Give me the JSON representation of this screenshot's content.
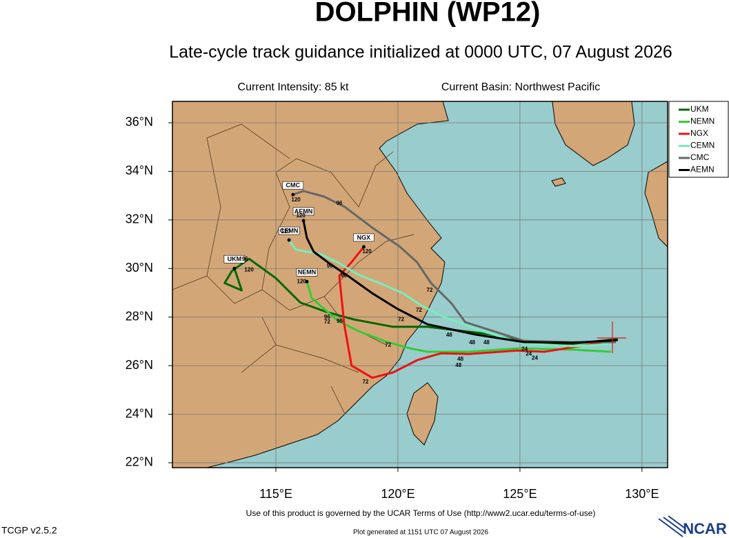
{
  "chart_data": {
    "type": "track",
    "title": "DOLPHIN (WP12)",
    "subtitle": "Late-cycle track guidance initialized at 0000 UTC, 07 August 2026",
    "intensity": "Current Intensity: 85 kt",
    "basin": "Current Basin: Northwest Pacific",
    "xlim": [
      110.76,
      131.05
    ],
    "ylim": [
      21.8,
      36.88
    ],
    "xticks": [
      {
        "value": 115,
        "label": "115°E"
      },
      {
        "value": 120,
        "label": "120°E"
      },
      {
        "value": 125,
        "label": "125°E"
      },
      {
        "value": 130,
        "label": "130°E"
      }
    ],
    "yticks": [
      {
        "value": 22,
        "label": "22°N"
      },
      {
        "value": 24,
        "label": "24°N"
      },
      {
        "value": 26,
        "label": "26°N"
      },
      {
        "value": 28,
        "label": "28°N"
      },
      {
        "value": 30,
        "label": "30°N"
      },
      {
        "value": 32,
        "label": "32°N"
      },
      {
        "value": 34,
        "label": "34°N"
      },
      {
        "value": 36,
        "label": "36°N"
      }
    ],
    "grid": true,
    "legend": "top-right",
    "series": [
      {
        "name": "UKM",
        "color": "#006600",
        "x": [
          129.0,
          127.2,
          125.6,
          123.7,
          121.2,
          119.8,
          118.2,
          117.1,
          116.0,
          115.0,
          113.9,
          113.2,
          112.9,
          113.6,
          113.3
        ],
        "y": [
          27.1,
          26.9,
          26.9,
          27.3,
          27.6,
          27.6,
          27.9,
          28.2,
          28.6,
          29.6,
          30.4,
          29.9,
          29.4,
          29.1,
          30.0
        ]
      },
      {
        "name": "NEMN",
        "color": "#33cc33",
        "x": [
          128.73,
          127.14,
          124.88,
          122.9,
          121.21,
          120.5,
          119.5,
          118.39,
          117.54,
          116.47,
          116.27
        ],
        "y": [
          26.57,
          26.66,
          26.71,
          26.57,
          26.57,
          26.71,
          26.99,
          27.42,
          27.85,
          28.78,
          29.46
        ]
      },
      {
        "name": "NGX",
        "color": "#ee1111",
        "x": [
          128.6,
          126.86,
          126.0,
          124.88,
          122.9,
          121.77,
          120.8,
          119.8,
          118.95,
          118.1,
          117.8,
          117.6,
          118.1,
          118.6
        ],
        "y": [
          27.0,
          26.71,
          26.57,
          26.62,
          26.48,
          26.51,
          26.23,
          25.72,
          25.5,
          26.0,
          27.7,
          29.7,
          30.26,
          30.89
        ]
      },
      {
        "name": "CEMN",
        "color": "#77eebb",
        "x": [
          128.73,
          127.14,
          125.16,
          123.46,
          121.77,
          120.92,
          120.21,
          119.22,
          118.37,
          117.52,
          116.81,
          115.82,
          115.54
        ],
        "y": [
          26.88,
          26.8,
          26.91,
          27.42,
          28.05,
          28.5,
          28.98,
          29.41,
          29.75,
          30.26,
          30.6,
          30.77,
          31.17
        ]
      },
      {
        "name": "CMC",
        "color": "#666666",
        "x": [
          128.93,
          127.14,
          125.16,
          122.76,
          122.2,
          121.35,
          120.78,
          120.08,
          118.95,
          117.83,
          116.97,
          116.13,
          115.7
        ],
        "y": [
          26.97,
          26.97,
          27.02,
          27.79,
          28.56,
          29.41,
          30.26,
          30.9,
          31.68,
          32.53,
          32.96,
          33.19,
          33.04
        ]
      },
      {
        "name": "AEMN",
        "color": "#000000",
        "x": [
          129.01,
          127.14,
          125.16,
          123.18,
          121.21,
          119.94,
          118.95,
          117.96,
          117.12,
          116.55,
          116.27,
          116.13
        ],
        "y": [
          27.05,
          26.94,
          26.97,
          27.28,
          27.7,
          28.36,
          28.98,
          29.69,
          30.26,
          30.69,
          31.26,
          31.97
        ]
      }
    ],
    "hour_labels": [
      {
        "text": "96",
        "lon": 113.73,
        "lat": 30.38
      },
      {
        "text": "120",
        "lon": 113.9,
        "lat": 29.94
      },
      {
        "text": "120",
        "lon": 115.82,
        "lat": 32.82
      },
      {
        "text": "96",
        "lon": 117.6,
        "lat": 32.68
      },
      {
        "text": "120",
        "lon": 116.02,
        "lat": 32.17
      },
      {
        "text": "120",
        "lon": 115.4,
        "lat": 31.51
      },
      {
        "text": "96",
        "lon": 117.21,
        "lat": 30.1
      },
      {
        "text": "96",
        "lon": 117.78,
        "lat": 29.7
      },
      {
        "text": "120",
        "lon": 118.73,
        "lat": 30.69
      },
      {
        "text": "120",
        "lon": 116.05,
        "lat": 29.46
      },
      {
        "text": "72",
        "lon": 121.3,
        "lat": 29.1
      },
      {
        "text": "72",
        "lon": 120.86,
        "lat": 28.28
      },
      {
        "text": "72",
        "lon": 120.13,
        "lat": 27.9
      },
      {
        "text": "96",
        "lon": 117.1,
        "lat": 28.0
      },
      {
        "text": "72",
        "lon": 117.1,
        "lat": 27.8
      },
      {
        "text": "96",
        "lon": 117.61,
        "lat": 27.82
      },
      {
        "text": "72",
        "lon": 119.6,
        "lat": 26.85
      },
      {
        "text": "48",
        "lon": 122.1,
        "lat": 27.25
      },
      {
        "text": "48",
        "lon": 123.04,
        "lat": 26.94
      },
      {
        "text": "48",
        "lon": 123.63,
        "lat": 26.94
      },
      {
        "text": "48",
        "lon": 122.56,
        "lat": 26.26
      },
      {
        "text": "48",
        "lon": 122.48,
        "lat": 26.0
      },
      {
        "text": "24",
        "lon": 125.19,
        "lat": 26.68
      },
      {
        "text": "24",
        "lon": 125.36,
        "lat": 26.48
      },
      {
        "text": "24",
        "lon": 125.61,
        "lat": 26.31
      },
      {
        "text": "72",
        "lon": 118.67,
        "lat": 25.33
      }
    ]
  },
  "footer": {
    "terms": "Use of this product is governed by the UCAR Terms of Use (http://www2.ucar.edu/terms-of-use)",
    "version": "TCGP v2.5.2",
    "generated": "Plot generated at 1151 UTC   07 August 2026",
    "logo": "NCAR"
  }
}
